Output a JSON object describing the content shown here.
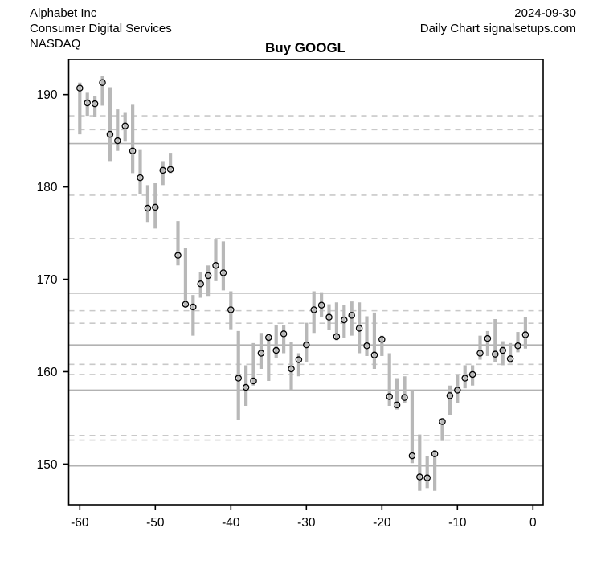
{
  "header": {
    "company": "Alphabet Inc",
    "sector": "Consumer Digital Services",
    "exchange": "NASDAQ",
    "date": "2024-09-30",
    "source": "Daily Chart signalsetups.com"
  },
  "title": "Buy GOOGL",
  "chart_data": {
    "type": "bar",
    "subtype": "high-low-close daily price bars",
    "title": "Buy GOOGL",
    "xlabel": "",
    "ylabel": "",
    "x_ticks": [
      -60,
      -50,
      -40,
      -30,
      -20,
      -10,
      0
    ],
    "y_ticks": [
      150,
      160,
      170,
      180,
      190
    ],
    "xlim": [
      -61.47,
      1.35
    ],
    "ylim": [
      145.6,
      193.8
    ],
    "grid": "horizontal support/resistance levels only",
    "legend": "none",
    "levels_solid": [
      184.7,
      168.5,
      162.9,
      158.0,
      149.8
    ],
    "levels_dashed": [
      187.7,
      186.2,
      179.1,
      174.4,
      166.6,
      165.25,
      160.8,
      159.7,
      153.1,
      152.6
    ],
    "bars": [
      {
        "day": -60,
        "high": 191.3,
        "low": 185.7,
        "close": 190.7
      },
      {
        "day": -59,
        "high": 190.2,
        "low": 187.7,
        "close": 189.1
      },
      {
        "day": -58,
        "high": 189.8,
        "low": 187.6,
        "close": 189.0
      },
      {
        "day": -57,
        "high": 192.0,
        "low": 188.8,
        "close": 191.3
      },
      {
        "day": -56,
        "high": 190.8,
        "low": 182.8,
        "close": 185.7
      },
      {
        "day": -55,
        "high": 188.4,
        "low": 183.9,
        "close": 185.0
      },
      {
        "day": -54,
        "high": 188.1,
        "low": 184.9,
        "close": 186.6
      },
      {
        "day": -53,
        "high": 188.9,
        "low": 181.5,
        "close": 183.9
      },
      {
        "day": -52,
        "high": 184.0,
        "low": 179.2,
        "close": 181.0
      },
      {
        "day": -51,
        "high": 180.2,
        "low": 176.2,
        "close": 177.7
      },
      {
        "day": -50,
        "high": 180.4,
        "low": 175.5,
        "close": 177.8
      },
      {
        "day": -49,
        "high": 182.8,
        "low": 180.2,
        "close": 181.8
      },
      {
        "day": -48,
        "high": 183.7,
        "low": 181.5,
        "close": 181.9
      },
      {
        "day": -47,
        "high": 176.3,
        "low": 171.5,
        "close": 172.6
      },
      {
        "day": -46,
        "high": 173.4,
        "low": 167.0,
        "close": 167.3
      },
      {
        "day": -45,
        "high": 168.3,
        "low": 163.9,
        "close": 167.0
      },
      {
        "day": -44,
        "high": 170.8,
        "low": 168.0,
        "close": 169.5
      },
      {
        "day": -43,
        "high": 171.5,
        "low": 168.2,
        "close": 170.4
      },
      {
        "day": -42,
        "high": 174.3,
        "low": 169.8,
        "close": 171.5
      },
      {
        "day": -41,
        "high": 174.1,
        "low": 168.8,
        "close": 170.7
      },
      {
        "day": -40,
        "high": 168.7,
        "low": 164.6,
        "close": 166.7
      },
      {
        "day": -39,
        "high": 164.4,
        "low": 154.8,
        "close": 159.3
      },
      {
        "day": -38,
        "high": 160.7,
        "low": 156.3,
        "close": 158.3
      },
      {
        "day": -37,
        "high": 163.1,
        "low": 158.5,
        "close": 159.0
      },
      {
        "day": -36,
        "high": 164.2,
        "low": 160.3,
        "close": 162.0
      },
      {
        "day": -35,
        "high": 163.9,
        "low": 159.0,
        "close": 163.7
      },
      {
        "day": -34,
        "high": 165.0,
        "low": 161.5,
        "close": 162.3
      },
      {
        "day": -33,
        "high": 165.0,
        "low": 162.0,
        "close": 164.1
      },
      {
        "day": -32,
        "high": 163.2,
        "low": 158.0,
        "close": 160.3
      },
      {
        "day": -31,
        "high": 162.0,
        "low": 159.5,
        "close": 161.3
      },
      {
        "day": -30,
        "high": 165.3,
        "low": 161.0,
        "close": 162.9
      },
      {
        "day": -29,
        "high": 168.7,
        "low": 164.2,
        "close": 166.7
      },
      {
        "day": -28,
        "high": 168.6,
        "low": 165.9,
        "close": 167.2
      },
      {
        "day": -27,
        "high": 167.3,
        "low": 164.5,
        "close": 165.9
      },
      {
        "day": -26,
        "high": 167.5,
        "low": 163.4,
        "close": 163.8
      },
      {
        "day": -25,
        "high": 167.2,
        "low": 163.7,
        "close": 165.6
      },
      {
        "day": -24,
        "high": 167.6,
        "low": 163.9,
        "close": 166.1
      },
      {
        "day": -23,
        "high": 167.5,
        "low": 162.0,
        "close": 164.7
      },
      {
        "day": -22,
        "high": 166.0,
        "low": 161.7,
        "close": 162.8
      },
      {
        "day": -21,
        "high": 166.4,
        "low": 160.3,
        "close": 161.8
      },
      {
        "day": -20,
        "high": 163.9,
        "low": 161.7,
        "close": 163.5
      },
      {
        "day": -19,
        "high": 162.0,
        "low": 156.3,
        "close": 157.3
      },
      {
        "day": -18,
        "high": 159.3,
        "low": 155.9,
        "close": 156.4
      },
      {
        "day": -17,
        "high": 159.5,
        "low": 156.6,
        "close": 157.2
      },
      {
        "day": -16,
        "high": 158.0,
        "low": 150.1,
        "close": 150.9
      },
      {
        "day": -15,
        "high": 153.2,
        "low": 147.1,
        "close": 148.6
      },
      {
        "day": -14,
        "high": 150.9,
        "low": 147.4,
        "close": 148.5
      },
      {
        "day": -13,
        "high": 151.5,
        "low": 147.1,
        "close": 151.1
      },
      {
        "day": -12,
        "high": 154.8,
        "low": 152.5,
        "close": 154.6
      },
      {
        "day": -11,
        "high": 158.5,
        "low": 155.3,
        "close": 157.4
      },
      {
        "day": -10,
        "high": 159.7,
        "low": 156.6,
        "close": 158.0
      },
      {
        "day": -9,
        "high": 160.7,
        "low": 158.2,
        "close": 159.3
      },
      {
        "day": -8,
        "high": 160.7,
        "low": 158.5,
        "close": 159.7
      },
      {
        "day": -7,
        "high": 163.9,
        "low": 161.3,
        "close": 162.0
      },
      {
        "day": -6,
        "high": 164.4,
        "low": 161.7,
        "close": 163.6
      },
      {
        "day": -5,
        "high": 165.7,
        "low": 161.0,
        "close": 161.9
      },
      {
        "day": -4,
        "high": 163.3,
        "low": 160.7,
        "close": 162.3
      },
      {
        "day": -3,
        "high": 163.1,
        "low": 160.9,
        "close": 161.4
      },
      {
        "day": -2,
        "high": 164.3,
        "low": 162.1,
        "close": 162.8
      },
      {
        "day": -1,
        "high": 165.9,
        "low": 162.5,
        "close": 164.0
      }
    ],
    "colors": {
      "bar": "#b8b8b8",
      "close_marker_stroke": "#000000",
      "level_solid": "#b2b2b2",
      "level_dashed": "#c9c9c9",
      "axis": "#000000",
      "text": "#000000"
    }
  }
}
